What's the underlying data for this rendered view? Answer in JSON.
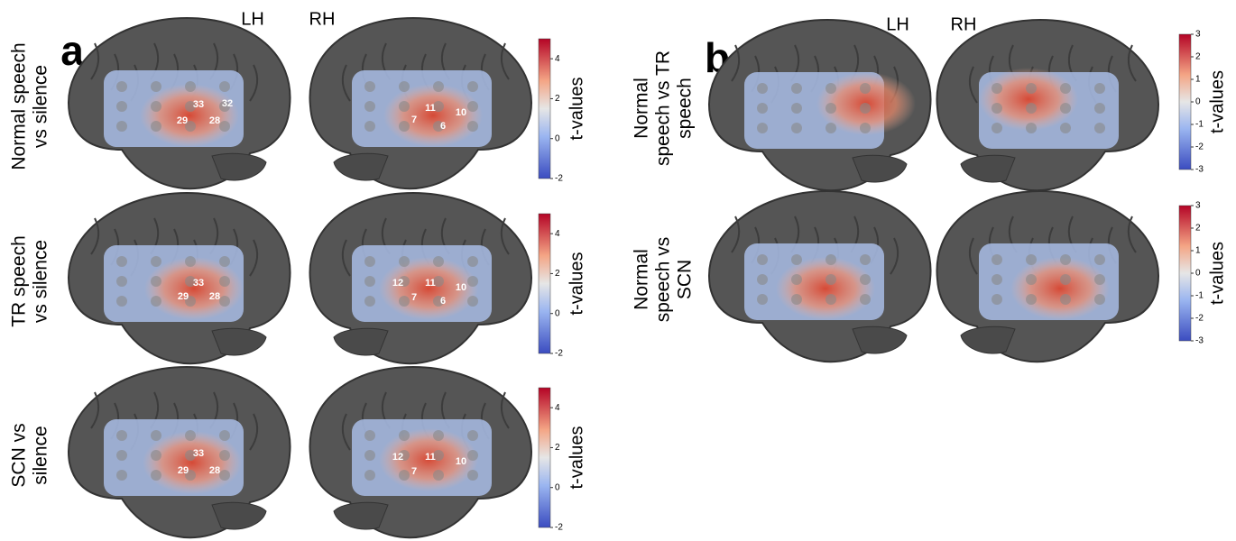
{
  "panels": [
    {
      "label": "a",
      "hemispheres": [
        "LH",
        "RH"
      ],
      "rows": [
        {
          "label": [
            "Normal speech",
            "vs silence"
          ],
          "lh_channels": [
            "29",
            "33",
            "32",
            "28"
          ],
          "rh_channels": [
            "7",
            "11",
            "10",
            "6"
          ],
          "colorbar": {
            "title": "t-values",
            "range": [
              -2,
              5
            ],
            "ticks": [
              -2,
              0,
              2,
              4
            ]
          }
        },
        {
          "label": [
            "TR speech",
            "vs silence"
          ],
          "lh_channels": [
            "29",
            "33",
            "28"
          ],
          "rh_channels": [
            "12",
            "7",
            "11",
            "10",
            "6"
          ],
          "colorbar": {
            "title": "t-values",
            "range": [
              -2,
              5
            ],
            "ticks": [
              -2,
              0,
              2,
              4
            ]
          }
        },
        {
          "label": [
            "SCN vs",
            "silence"
          ],
          "lh_channels": [
            "29",
            "33",
            "28"
          ],
          "rh_channels": [
            "12",
            "7",
            "11",
            "10"
          ],
          "colorbar": {
            "title": "t-values",
            "range": [
              -2,
              5
            ],
            "ticks": [
              -2,
              0,
              2,
              4
            ]
          }
        }
      ]
    },
    {
      "label": "b",
      "hemispheres": [
        "LH",
        "RH"
      ],
      "rows": [
        {
          "label": [
            "Normal",
            "speech vs TR",
            "speech"
          ],
          "colorbar": {
            "title": "t-values",
            "range": [
              -3,
              3
            ],
            "ticks": [
              -3,
              -2,
              -1,
              0,
              1,
              2,
              3
            ]
          }
        },
        {
          "label": [
            "Normal",
            "speech vs",
            "SCN"
          ],
          "colorbar": {
            "title": "t-values",
            "range": [
              -3,
              3
            ],
            "ticks": [
              -3,
              -2,
              -1,
              0,
              1,
              2,
              3
            ]
          }
        }
      ]
    }
  ]
}
